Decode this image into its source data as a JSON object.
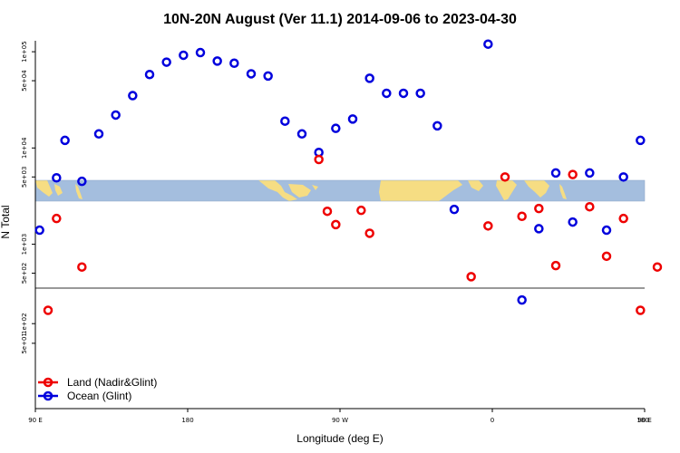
{
  "chart_data": {
    "type": "scatter",
    "title": "10N-20N August (Ver 11.1)   2014-09-06 to 2023-04-30",
    "xlabel": "Longitude (deg E)",
    "ylabel": "N Total",
    "xlim": [
      90,
      450
    ],
    "x_ticks": [
      {
        "value": 90,
        "label": "90 E"
      },
      {
        "value": 180,
        "label": "180"
      },
      {
        "value": 270,
        "label": "90 W"
      },
      {
        "value": 360,
        "label": "0"
      },
      {
        "value": 450,
        "label": "90 E"
      },
      {
        "value": 540,
        "label": "180"
      }
    ],
    "upper_panel": {
      "scale": "log",
      "ylim": [
        350,
        130000
      ],
      "y_ticks": [
        {
          "value": 500,
          "label": "5e+02"
        },
        {
          "value": 1000,
          "label": "1e+03"
        },
        {
          "value": 5000,
          "label": "5e+03"
        },
        {
          "value": 10000,
          "label": "1e+04"
        },
        {
          "value": 50000,
          "label": "5e+04"
        },
        {
          "value": 100000,
          "label": "1e+05"
        }
      ]
    },
    "lower_panel": {
      "scale": "log",
      "ylim": [
        5,
        350
      ],
      "y_ticks": [
        {
          "value": 50,
          "label": "5e+01"
        },
        {
          "value": 100,
          "label": "1e+02"
        }
      ]
    },
    "legend": {
      "placement": "bottom-left",
      "entries": [
        {
          "label": "Land (Nadir&Glint)",
          "color": "#ee0000"
        },
        {
          "label": "Ocean (Glint)",
          "color": "#0000dd"
        }
      ]
    },
    "colors": {
      "land": "#ee0000",
      "ocean": "#0000dd",
      "map_ocean": "#a4bede",
      "map_land": "#f6dd83"
    },
    "series": [
      {
        "name": "Ocean (Glint)",
        "points": [
          {
            "x": 92.5,
            "y": 1400
          },
          {
            "x": 102.5,
            "y": 4900
          },
          {
            "x": 107.5,
            "y": 12000
          },
          {
            "x": 117.5,
            "y": 4500
          },
          {
            "x": 127.5,
            "y": 14000
          },
          {
            "x": 137.5,
            "y": 22000
          },
          {
            "x": 147.5,
            "y": 35000
          },
          {
            "x": 157.5,
            "y": 58000
          },
          {
            "x": 167.5,
            "y": 78000
          },
          {
            "x": 177.5,
            "y": 92000
          },
          {
            "x": 187.5,
            "y": 98000
          },
          {
            "x": 197.5,
            "y": 80000
          },
          {
            "x": 207.5,
            "y": 76000
          },
          {
            "x": 217.5,
            "y": 59000
          },
          {
            "x": 227.5,
            "y": 56000
          },
          {
            "x": 237.5,
            "y": 19000
          },
          {
            "x": 247.5,
            "y": 14000
          },
          {
            "x": 257.5,
            "y": 9000
          },
          {
            "x": 267.5,
            "y": 16000
          },
          {
            "x": 277.5,
            "y": 20000
          },
          {
            "x": 287.5,
            "y": 53000
          },
          {
            "x": 297.5,
            "y": 37000
          },
          {
            "x": 307.5,
            "y": 37000
          },
          {
            "x": 317.5,
            "y": 37000
          },
          {
            "x": 327.5,
            "y": 17000
          },
          {
            "x": 337.5,
            "y": 2300
          },
          {
            "x": 357.5,
            "y": 120000
          },
          {
            "x": 377.5,
            "y": 230
          },
          {
            "x": 387.5,
            "y": 1450
          },
          {
            "x": 397.5,
            "y": 5500
          },
          {
            "x": 407.5,
            "y": 1700
          },
          {
            "x": 417.5,
            "y": 5500
          },
          {
            "x": 427.5,
            "y": 1400
          },
          {
            "x": 437.5,
            "y": 5000
          },
          {
            "x": 447.5,
            "y": 12000
          }
        ]
      },
      {
        "name": "Land (Nadir&Glint)",
        "points": [
          {
            "x": 97.5,
            "y": 160
          },
          {
            "x": 102.5,
            "y": 1850
          },
          {
            "x": 117.5,
            "y": 580
          },
          {
            "x": 257.5,
            "y": 7600
          },
          {
            "x": 262.5,
            "y": 2200
          },
          {
            "x": 267.5,
            "y": 1600
          },
          {
            "x": 282.5,
            "y": 2250
          },
          {
            "x": 287.5,
            "y": 1300
          },
          {
            "x": 347.5,
            "y": 460
          },
          {
            "x": 357.5,
            "y": 1550
          },
          {
            "x": 367.5,
            "y": 5000
          },
          {
            "x": 377.5,
            "y": 1950
          },
          {
            "x": 387.5,
            "y": 2350
          },
          {
            "x": 397.5,
            "y": 600
          },
          {
            "x": 407.5,
            "y": 5300
          },
          {
            "x": 417.5,
            "y": 2450
          },
          {
            "x": 427.5,
            "y": 750
          },
          {
            "x": 437.5,
            "y": 1850
          },
          {
            "x": 447.5,
            "y": 160
          },
          {
            "x": 457.5,
            "y": 580
          }
        ]
      }
    ]
  }
}
